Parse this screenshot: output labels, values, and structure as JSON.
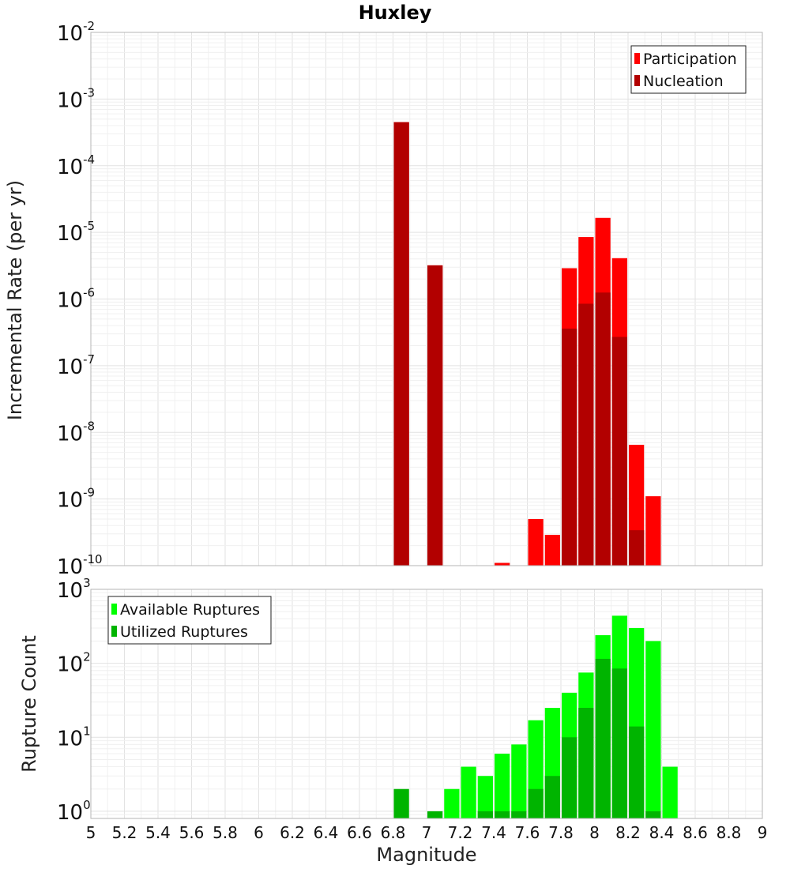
{
  "chart_data": [
    {
      "type": "bar",
      "title": "Huxley",
      "ylabel": "Incremental Rate (per yr)",
      "xlabel": "",
      "y_scale": "log",
      "ylim": [
        1e-10,
        0.01
      ],
      "xlim": [
        5,
        9
      ],
      "bin_width": 0.1,
      "legend": {
        "position": "top-right",
        "entries": [
          "Participation",
          "Nucleation"
        ]
      },
      "series": [
        {
          "name": "Participation",
          "color": "#ff0000",
          "x": [
            6.85,
            7.05,
            7.45,
            7.65,
            7.75,
            7.85,
            7.95,
            8.05,
            8.15,
            8.25,
            8.35
          ],
          "values": [
            0.00045,
            3.2e-06,
            1.1e-10,
            5e-10,
            2.9e-10,
            2.9e-06,
            8.5e-06,
            1.65e-05,
            4.1e-06,
            6.5e-09,
            1.1e-09
          ]
        },
        {
          "name": "Nucleation",
          "color": "#b20000",
          "x": [
            6.85,
            7.05,
            7.85,
            7.95,
            8.05,
            8.15,
            8.25
          ],
          "values": [
            0.00045,
            3.2e-06,
            3.6e-07,
            8.5e-07,
            1.25e-06,
            2.7e-07,
            3.4e-10
          ]
        }
      ],
      "y_ticks": [
        {
          "base": "10",
          "exp": "-2"
        },
        {
          "base": "10",
          "exp": "-3"
        },
        {
          "base": "10",
          "exp": "-4"
        },
        {
          "base": "10",
          "exp": "-5"
        },
        {
          "base": "10",
          "exp": "-6"
        },
        {
          "base": "10",
          "exp": "-7"
        },
        {
          "base": "10",
          "exp": "-8"
        },
        {
          "base": "10",
          "exp": "-9"
        },
        {
          "base": "10",
          "exp": "-10"
        }
      ]
    },
    {
      "type": "bar",
      "title": "",
      "ylabel": "Rupture Count",
      "xlabel": "Magnitude",
      "y_scale": "log",
      "ylim": [
        0.8,
        1000
      ],
      "xlim": [
        5,
        9
      ],
      "bin_width": 0.1,
      "legend": {
        "position": "top-left",
        "entries": [
          "Available Ruptures",
          "Utilized Ruptures"
        ]
      },
      "series": [
        {
          "name": "Available Ruptures",
          "color": "#00ff00",
          "x": [
            7.15,
            7.25,
            7.35,
            7.45,
            7.55,
            7.65,
            7.75,
            7.85,
            7.95,
            8.05,
            8.15,
            8.25,
            8.35,
            8.45
          ],
          "values": [
            2,
            4,
            3,
            6,
            8,
            17,
            25,
            40,
            75,
            240,
            440,
            300,
            200,
            4
          ]
        },
        {
          "name": "Utilized Ruptures",
          "color": "#00b400",
          "x": [
            6.85,
            7.05,
            7.35,
            7.45,
            7.55,
            7.65,
            7.75,
            7.85,
            7.95,
            8.05,
            8.15,
            8.25,
            8.35
          ],
          "values": [
            2,
            1,
            1,
            1,
            1,
            2,
            3,
            10,
            25,
            115,
            85,
            14,
            1
          ]
        }
      ],
      "y_ticks": [
        {
          "base": "10",
          "exp": "3"
        },
        {
          "base": "10",
          "exp": "2"
        },
        {
          "base": "10",
          "exp": "1"
        },
        {
          "base": "10",
          "exp": "0"
        }
      ],
      "x_ticks": [
        "5",
        "5.2",
        "5.4",
        "5.6",
        "5.8",
        "6",
        "6.2",
        "6.4",
        "6.6",
        "6.8",
        "7",
        "7.2",
        "7.4",
        "7.6",
        "7.8",
        "8",
        "8.2",
        "8.4",
        "8.6",
        "8.8",
        "9"
      ]
    }
  ]
}
